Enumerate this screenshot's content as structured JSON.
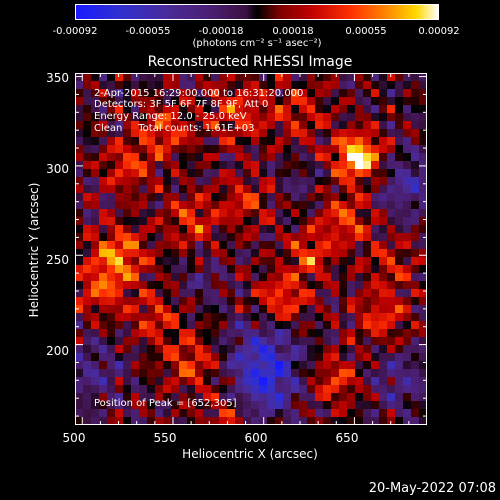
{
  "colorbar": {
    "ticks": [
      "-0.00092",
      "-0.00055",
      "-0.00018",
      "0.00018",
      "0.00055",
      "0.00092"
    ],
    "unit_label": "(photons cm⁻² s⁻¹ asec⁻²)"
  },
  "annotations": {
    "time": "2-Apr-2015 16:29:00.000 to 16:31:20.000",
    "detectors": "Detectors: 3F 5F 6F 7F 8F 9F, Att 0",
    "energy": "Energy Range: 12.0 - 25.0 keV",
    "method": "Clean     Total counts: 1.61E+03",
    "peak": "Position of Peak = [652,305]"
  },
  "footer_date": "20-May-2022 07:08",
  "chart_data": {
    "type": "heatmap",
    "title": "Reconstructed RHESSI Image",
    "xlabel": "Heliocentric X (arcsec)",
    "ylabel": "Heliocentric Y (arcsec)",
    "xlim": [
      496,
      690
    ],
    "ylim": [
      155,
      352
    ],
    "x_ticks": [
      "500",
      "550",
      "600",
      "650"
    ],
    "y_ticks": [
      "200",
      "250",
      "300",
      "350"
    ],
    "value_range": [
      -0.00092,
      0.00092
    ],
    "peak": {
      "x": 652,
      "y": 305
    },
    "blobs": [
      {
        "x": 652,
        "y": 305,
        "amp": 0.00092,
        "s": 9
      },
      {
        "x": 645,
        "y": 270,
        "amp": 0.00045,
        "s": 10
      },
      {
        "x": 610,
        "y": 225,
        "amp": 0.0005,
        "s": 10
      },
      {
        "x": 625,
        "y": 250,
        "amp": 0.00045,
        "s": 9
      },
      {
        "x": 520,
        "y": 250,
        "amp": 0.0006,
        "s": 11
      },
      {
        "x": 510,
        "y": 230,
        "amp": 0.0004,
        "s": 10
      },
      {
        "x": 545,
        "y": 320,
        "amp": 0.00045,
        "s": 10
      },
      {
        "x": 525,
        "y": 300,
        "amp": 0.0004,
        "s": 10
      },
      {
        "x": 585,
        "y": 330,
        "amp": 0.0004,
        "s": 12
      },
      {
        "x": 560,
        "y": 270,
        "amp": 0.0004,
        "s": 10
      },
      {
        "x": 590,
        "y": 280,
        "amp": 0.00035,
        "s": 10
      },
      {
        "x": 665,
        "y": 215,
        "amp": 0.0004,
        "s": 10
      },
      {
        "x": 670,
        "y": 245,
        "amp": 0.0003,
        "s": 10
      },
      {
        "x": 560,
        "y": 190,
        "amp": 0.0004,
        "s": 11
      },
      {
        "x": 540,
        "y": 215,
        "amp": 0.00035,
        "s": 10
      },
      {
        "x": 640,
        "y": 180,
        "amp": 0.0004,
        "s": 10
      },
      {
        "x": 580,
        "y": 160,
        "amp": 0.0003,
        "s": 10
      },
      {
        "x": 620,
        "y": 330,
        "amp": 0.0003,
        "s": 12
      },
      {
        "x": 600,
        "y": 195,
        "amp": -0.0005,
        "s": 14
      },
      {
        "x": 600,
        "y": 175,
        "amp": -0.0005,
        "s": 12
      },
      {
        "x": 680,
        "y": 290,
        "amp": -0.0004,
        "s": 12
      },
      {
        "x": 675,
        "y": 180,
        "amp": -0.0003,
        "s": 12
      },
      {
        "x": 505,
        "y": 185,
        "amp": -0.0003,
        "s": 12
      },
      {
        "x": 565,
        "y": 235,
        "amp": -0.0002,
        "s": 8
      },
      {
        "x": 620,
        "y": 290,
        "amp": -0.00015,
        "s": 8
      }
    ]
  }
}
